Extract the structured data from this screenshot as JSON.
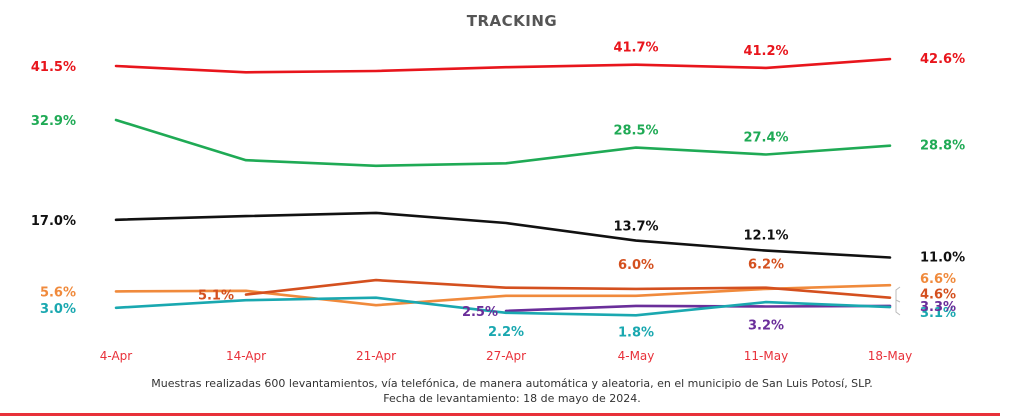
{
  "chart_data": {
    "type": "line",
    "title": "TRACKING",
    "xlabel": "",
    "ylabel": "",
    "ylim": [
      0,
      45
    ],
    "grid": false,
    "legend": "none",
    "categories": [
      "4-Apr",
      "14-Apr",
      "21-Apr",
      "27-Apr",
      "4-May",
      "11-May",
      "18-May"
    ],
    "series": [
      {
        "name": "red",
        "color": "#e8151c",
        "values": [
          41.5,
          40.5,
          40.7,
          41.3,
          41.7,
          41.2,
          42.6
        ],
        "labels": [
          "41.5%",
          null,
          null,
          null,
          "41.7%",
          "41.2%",
          "42.6%"
        ]
      },
      {
        "name": "green",
        "color": "#1faa55",
        "values": [
          32.9,
          26.5,
          25.6,
          26.0,
          28.5,
          27.4,
          28.8
        ],
        "labels": [
          "32.9%",
          null,
          null,
          null,
          "28.5%",
          "27.4%",
          "28.8%"
        ]
      },
      {
        "name": "black",
        "color": "#111111",
        "values": [
          17.0,
          17.6,
          18.1,
          16.5,
          13.7,
          12.1,
          11.0
        ],
        "labels": [
          "17.0%",
          null,
          null,
          null,
          "13.7%",
          "12.1%",
          "11.0%"
        ]
      },
      {
        "name": "light-orange",
        "color": "#f08a3c",
        "values": [
          5.6,
          5.7,
          3.4,
          4.9,
          4.9,
          6.0,
          6.6
        ],
        "labels": [
          "5.6%",
          null,
          null,
          null,
          null,
          null,
          "6.6%"
        ]
      },
      {
        "name": "dark-orange",
        "color": "#d4501f",
        "values": [
          null,
          5.1,
          7.4,
          6.2,
          6.0,
          6.2,
          4.6
        ],
        "labels": [
          null,
          "5.1%",
          null,
          null,
          "6.0%",
          "6.2%",
          "4.6%"
        ]
      },
      {
        "name": "teal",
        "color": "#1aa8b0",
        "values": [
          3.0,
          4.2,
          4.6,
          2.2,
          1.8,
          3.9,
          3.1
        ],
        "labels": [
          "3.0%",
          null,
          null,
          "2.2%",
          "1.8%",
          null,
          "3.1%"
        ]
      },
      {
        "name": "purple",
        "color": "#6a2e9a",
        "values": [
          null,
          null,
          null,
          2.5,
          3.3,
          3.2,
          3.3
        ],
        "labels": [
          null,
          null,
          null,
          "2.5%",
          null,
          "3.2%",
          "3.3%"
        ]
      }
    ]
  },
  "footnote": {
    "line1": "Muestras realizadas 600 levantamientos, vía telefónica, de manera automática y aleatoria, en el municipio de San Luis Potosí, SLP.",
    "line2": "Fecha de levantamiento: 18 de mayo de 2024."
  }
}
